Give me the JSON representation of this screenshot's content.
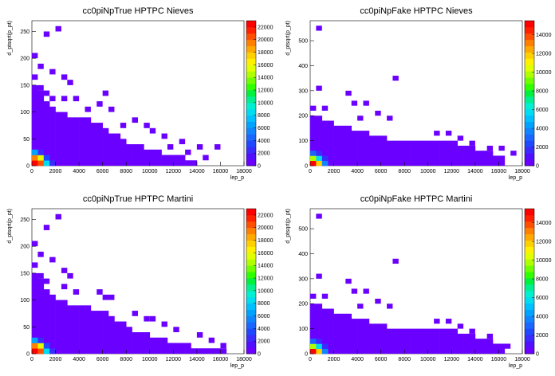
{
  "colorbar_palette": [
    "#6a00ff",
    "#5010ff",
    "#3a2cff",
    "#2048ff",
    "#1a66ff",
    "#1084ff",
    "#00a2ff",
    "#00c0ff",
    "#00ddf0",
    "#00f0d0",
    "#00f090",
    "#00f040",
    "#30ff00",
    "#70ff00",
    "#b0ff00",
    "#e0ff00",
    "#fff000",
    "#ffd000",
    "#ffa800",
    "#ff8000",
    "#ff5000",
    "#ff2000",
    "#ff0000"
  ],
  "chart_data": [
    {
      "id": "p1",
      "type": "heatmap",
      "title": "cc0piNpTrue HPTPC Nieves",
      "xlabel": "lep_p",
      "ylabel": "d_ptsqrt(p_pt)",
      "xlim": [
        0,
        18000
      ],
      "ylim": [
        0,
        270
      ],
      "x_ticks": [
        0,
        2000,
        4000,
        6000,
        8000,
        10000,
        12000,
        14000,
        16000,
        18000
      ],
      "y_ticks": [
        0,
        50,
        100,
        150,
        200,
        250
      ],
      "zlim": [
        0,
        23000
      ],
      "z_ticks": [
        0,
        2000,
        4000,
        6000,
        8000,
        10000,
        12000,
        14000,
        16000,
        18000,
        20000,
        22000
      ],
      "bin_dx": 500,
      "bin_dy": 10,
      "envelope_x": [
        0,
        500,
        1000,
        1500,
        2000,
        2500,
        3000,
        3500,
        4000,
        4500,
        5000,
        5500,
        6000,
        6500,
        7000,
        7500,
        8000,
        8500,
        9000,
        9500,
        10000,
        10500,
        11000,
        11500,
        12000,
        12500,
        13000,
        13500,
        14000
      ],
      "envelope_ymax": [
        150,
        140,
        120,
        110,
        100,
        100,
        90,
        90,
        90,
        90,
        80,
        80,
        70,
        60,
        60,
        50,
        40,
        40,
        40,
        30,
        30,
        30,
        20,
        20,
        20,
        20,
        10,
        10,
        0
      ],
      "hot_cells": [
        {
          "x": 0,
          "y": 0,
          "z": 22000
        },
        {
          "x": 500,
          "y": 0,
          "z": 20000
        },
        {
          "x": 0,
          "y": 10,
          "z": 19000
        },
        {
          "x": 500,
          "y": 10,
          "z": 15000
        },
        {
          "x": 1000,
          "y": 0,
          "z": 8000
        },
        {
          "x": 0,
          "y": 20,
          "z": 6000
        },
        {
          "x": 1000,
          "y": 10,
          "z": 3000
        },
        {
          "x": 1500,
          "y": 0,
          "z": 2500
        },
        {
          "x": 500,
          "y": 20,
          "z": 2000
        }
      ],
      "outliers": [
        {
          "x": 2000,
          "y": 250
        },
        {
          "x": 1000,
          "y": 240
        },
        {
          "x": 0,
          "y": 200
        },
        {
          "x": 500,
          "y": 180
        },
        {
          "x": 0,
          "y": 160
        },
        {
          "x": 1500,
          "y": 170
        },
        {
          "x": 2500,
          "y": 160
        },
        {
          "x": 3000,
          "y": 150
        },
        {
          "x": 500,
          "y": 140
        },
        {
          "x": 1000,
          "y": 130
        },
        {
          "x": 1500,
          "y": 120
        },
        {
          "x": 2500,
          "y": 120
        },
        {
          "x": 3500,
          "y": 120
        },
        {
          "x": 6000,
          "y": 130
        },
        {
          "x": 5500,
          "y": 110
        },
        {
          "x": 6500,
          "y": 100
        },
        {
          "x": 4500,
          "y": 100
        },
        {
          "x": 8500,
          "y": 80
        },
        {
          "x": 7500,
          "y": 70
        },
        {
          "x": 9500,
          "y": 70
        },
        {
          "x": 10000,
          "y": 60
        },
        {
          "x": 11000,
          "y": 50
        },
        {
          "x": 12500,
          "y": 40
        },
        {
          "x": 14000,
          "y": 30
        },
        {
          "x": 15500,
          "y": 30
        },
        {
          "x": 13000,
          "y": 20
        },
        {
          "x": 14500,
          "y": 10
        },
        {
          "x": 11500,
          "y": 30
        }
      ]
    },
    {
      "id": "p2",
      "type": "heatmap",
      "title": "cc0piNpFake HPTPC Nieves",
      "xlabel": "lep_p",
      "ylabel": "d_ptsqrt(p_pt)",
      "xlim": [
        0,
        18000
      ],
      "ylim": [
        0,
        580
      ],
      "x_ticks": [
        0,
        2000,
        4000,
        6000,
        8000,
        10000,
        12000,
        14000,
        16000,
        18000
      ],
      "y_ticks": [
        0,
        100,
        200,
        300,
        400,
        500
      ],
      "zlim": [
        0,
        15500
      ],
      "z_ticks": [
        0,
        2000,
        4000,
        6000,
        8000,
        10000,
        12000,
        14000
      ],
      "bin_dx": 500,
      "bin_dy": 20,
      "envelope_x": [
        0,
        500,
        1000,
        1500,
        2000,
        2500,
        3000,
        3500,
        4000,
        4500,
        5000,
        5500,
        6000,
        6500,
        7000,
        7500,
        8000,
        8500,
        9000,
        9500,
        10000,
        10500,
        11000,
        11500,
        12000,
        12500,
        13000,
        13500,
        14000,
        14500,
        15000,
        15500,
        16000
      ],
      "envelope_ymax": [
        200,
        200,
        180,
        180,
        160,
        160,
        160,
        140,
        140,
        140,
        120,
        120,
        120,
        100,
        100,
        100,
        100,
        100,
        100,
        100,
        100,
        100,
        100,
        100,
        100,
        80,
        80,
        80,
        60,
        60,
        60,
        40,
        40
      ],
      "hot_cells": [
        {
          "x": 0,
          "y": 0,
          "z": 15000
        },
        {
          "x": 500,
          "y": 0,
          "z": 12000
        },
        {
          "x": 0,
          "y": 20,
          "z": 10000
        },
        {
          "x": 500,
          "y": 20,
          "z": 6000
        },
        {
          "x": 1000,
          "y": 0,
          "z": 4000
        },
        {
          "x": 0,
          "y": 40,
          "z": 3000
        },
        {
          "x": 1000,
          "y": 20,
          "z": 2000
        },
        {
          "x": 500,
          "y": 40,
          "z": 1500
        }
      ],
      "outliers": [
        {
          "x": 500,
          "y": 540
        },
        {
          "x": 7000,
          "y": 340
        },
        {
          "x": 500,
          "y": 300
        },
        {
          "x": 3000,
          "y": 280
        },
        {
          "x": 3500,
          "y": 240
        },
        {
          "x": 4500,
          "y": 240
        },
        {
          "x": 0,
          "y": 220
        },
        {
          "x": 1000,
          "y": 220
        },
        {
          "x": 5500,
          "y": 200
        },
        {
          "x": 6500,
          "y": 180
        },
        {
          "x": 4000,
          "y": 180
        },
        {
          "x": 10500,
          "y": 120
        },
        {
          "x": 11500,
          "y": 120
        },
        {
          "x": 12500,
          "y": 100
        },
        {
          "x": 13500,
          "y": 80
        },
        {
          "x": 15000,
          "y": 60
        },
        {
          "x": 16000,
          "y": 60
        },
        {
          "x": 17000,
          "y": 40
        }
      ]
    },
    {
      "id": "p3",
      "type": "heatmap",
      "title": "cc0piNpTrue HPTPC Martini",
      "xlabel": "lep_p",
      "ylabel": "d_ptsqrt(p_pt)",
      "xlim": [
        0,
        18000
      ],
      "ylim": [
        0,
        270
      ],
      "x_ticks": [
        0,
        2000,
        4000,
        6000,
        8000,
        10000,
        12000,
        14000,
        16000,
        18000
      ],
      "y_ticks": [
        0,
        50,
        100,
        150,
        200,
        250
      ],
      "zlim": [
        0,
        23000
      ],
      "z_ticks": [
        0,
        2000,
        4000,
        6000,
        8000,
        10000,
        12000,
        14000,
        16000,
        18000,
        20000,
        22000
      ],
      "bin_dx": 500,
      "bin_dy": 10,
      "envelope_x": [
        0,
        500,
        1000,
        1500,
        2000,
        2500,
        3000,
        3500,
        4000,
        4500,
        5000,
        5500,
        6000,
        6500,
        7000,
        7500,
        8000,
        8500,
        9000,
        9500,
        10000,
        10500,
        11000,
        11500,
        12000,
        12500,
        13000,
        13500,
        14000,
        14500,
        15000,
        15500,
        16000,
        16500
      ],
      "envelope_ymax": [
        150,
        140,
        120,
        110,
        100,
        100,
        90,
        90,
        90,
        90,
        80,
        80,
        80,
        70,
        60,
        60,
        50,
        40,
        40,
        40,
        30,
        30,
        30,
        20,
        20,
        20,
        20,
        10,
        10,
        10,
        10,
        10,
        10,
        0
      ],
      "hot_cells": [
        {
          "x": 0,
          "y": 0,
          "z": 22000
        },
        {
          "x": 500,
          "y": 0,
          "z": 20000
        },
        {
          "x": 0,
          "y": 10,
          "z": 19000
        },
        {
          "x": 500,
          "y": 10,
          "z": 15000
        },
        {
          "x": 1000,
          "y": 0,
          "z": 8000
        },
        {
          "x": 0,
          "y": 20,
          "z": 6000
        },
        {
          "x": 1000,
          "y": 10,
          "z": 3000
        },
        {
          "x": 1500,
          "y": 0,
          "z": 2500
        },
        {
          "x": 500,
          "y": 20,
          "z": 2000
        }
      ],
      "outliers": [
        {
          "x": 2000,
          "y": 250
        },
        {
          "x": 1000,
          "y": 230
        },
        {
          "x": 0,
          "y": 200
        },
        {
          "x": 500,
          "y": 180
        },
        {
          "x": 0,
          "y": 160
        },
        {
          "x": 1500,
          "y": 170
        },
        {
          "x": 2500,
          "y": 150
        },
        {
          "x": 3000,
          "y": 140
        },
        {
          "x": 500,
          "y": 140
        },
        {
          "x": 1000,
          "y": 130
        },
        {
          "x": 2500,
          "y": 120
        },
        {
          "x": 3500,
          "y": 110
        },
        {
          "x": 5500,
          "y": 110
        },
        {
          "x": 6000,
          "y": 100
        },
        {
          "x": 6500,
          "y": 100
        },
        {
          "x": 8500,
          "y": 70
        },
        {
          "x": 9500,
          "y": 60
        },
        {
          "x": 10000,
          "y": 60
        },
        {
          "x": 11000,
          "y": 50
        },
        {
          "x": 12000,
          "y": 40
        },
        {
          "x": 14000,
          "y": 30
        },
        {
          "x": 15000,
          "y": 20
        },
        {
          "x": 16000,
          "y": 10
        }
      ]
    },
    {
      "id": "p4",
      "type": "heatmap",
      "title": "cc0piNpFake HPTPC Martini",
      "xlabel": "lep_p",
      "ylabel": "d_ptsqrt(p_pt)",
      "xlim": [
        0,
        18000
      ],
      "ylim": [
        0,
        580
      ],
      "x_ticks": [
        0,
        2000,
        4000,
        6000,
        8000,
        10000,
        12000,
        14000,
        16000,
        18000
      ],
      "y_ticks": [
        0,
        100,
        200,
        300,
        400,
        500
      ],
      "zlim": [
        0,
        15500
      ],
      "z_ticks": [
        0,
        2000,
        4000,
        6000,
        8000,
        10000,
        12000,
        14000
      ],
      "bin_dx": 500,
      "bin_dy": 20,
      "envelope_x": [
        0,
        500,
        1000,
        1500,
        2000,
        2500,
        3000,
        3500,
        4000,
        4500,
        5000,
        5500,
        6000,
        6500,
        7000,
        7500,
        8000,
        8500,
        9000,
        9500,
        10000,
        10500,
        11000,
        11500,
        12000,
        12500,
        13000,
        13500,
        14000,
        14500,
        15000,
        15500,
        16000
      ],
      "envelope_ymax": [
        200,
        200,
        180,
        180,
        160,
        160,
        160,
        140,
        140,
        140,
        120,
        120,
        120,
        100,
        100,
        100,
        100,
        100,
        100,
        100,
        100,
        100,
        100,
        100,
        100,
        80,
        80,
        80,
        60,
        60,
        60,
        40,
        40
      ],
      "hot_cells": [
        {
          "x": 0,
          "y": 0,
          "z": 15000
        },
        {
          "x": 500,
          "y": 0,
          "z": 12000
        },
        {
          "x": 0,
          "y": 20,
          "z": 10000
        },
        {
          "x": 500,
          "y": 20,
          "z": 6000
        },
        {
          "x": 1000,
          "y": 0,
          "z": 4000
        },
        {
          "x": 0,
          "y": 40,
          "z": 3000
        },
        {
          "x": 1000,
          "y": 20,
          "z": 2000
        },
        {
          "x": 500,
          "y": 40,
          "z": 1500
        }
      ],
      "outliers": [
        {
          "x": 500,
          "y": 540
        },
        {
          "x": 7000,
          "y": 360
        },
        {
          "x": 500,
          "y": 300
        },
        {
          "x": 3000,
          "y": 280
        },
        {
          "x": 3500,
          "y": 240
        },
        {
          "x": 4500,
          "y": 240
        },
        {
          "x": 0,
          "y": 220
        },
        {
          "x": 1000,
          "y": 220
        },
        {
          "x": 5500,
          "y": 200
        },
        {
          "x": 6500,
          "y": 180
        },
        {
          "x": 4000,
          "y": 180
        },
        {
          "x": 10500,
          "y": 120
        },
        {
          "x": 11500,
          "y": 120
        },
        {
          "x": 12500,
          "y": 100
        },
        {
          "x": 13500,
          "y": 80
        },
        {
          "x": 15000,
          "y": 60
        },
        {
          "x": 16500,
          "y": 20
        }
      ]
    }
  ]
}
